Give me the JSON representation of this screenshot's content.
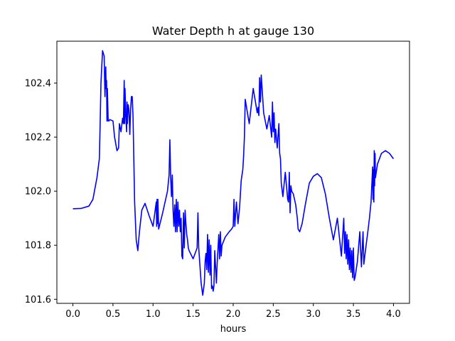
{
  "chart_data": {
    "type": "line",
    "title": "Water Depth h at gauge 130",
    "xlabel": "hours",
    "ylabel": "",
    "xlim": [
      -0.2,
      4.2
    ],
    "ylim": [
      101.585,
      102.555
    ],
    "xticks": [
      0.0,
      0.5,
      1.0,
      1.5,
      2.0,
      2.5,
      3.0,
      3.5,
      4.0
    ],
    "xtick_labels": [
      "0.0",
      "0.5",
      "1.0",
      "1.5",
      "2.0",
      "2.5",
      "3.0",
      "3.5",
      "4.0"
    ],
    "yticks": [
      101.6,
      101.8,
      102.0,
      102.2,
      102.4
    ],
    "ytick_labels": [
      "101.6",
      "101.8",
      "102.0",
      "102.2",
      "102.4"
    ],
    "grid": false,
    "series": [
      {
        "color": "#0000ff",
        "x": [
          0.0,
          0.1,
          0.2,
          0.25,
          0.3,
          0.33,
          0.34,
          0.35,
          0.37,
          0.39,
          0.4,
          0.41,
          0.415,
          0.42,
          0.425,
          0.43,
          0.44,
          0.45,
          0.46,
          0.5,
          0.52,
          0.55,
          0.57,
          0.58,
          0.6,
          0.62,
          0.63,
          0.64,
          0.645,
          0.65,
          0.66,
          0.67,
          0.675,
          0.68,
          0.69,
          0.7,
          0.71,
          0.72,
          0.73,
          0.74,
          0.75,
          0.77,
          0.79,
          0.8,
          0.81,
          0.83,
          0.86,
          0.9,
          0.95,
          1.0,
          1.04,
          1.045,
          1.05,
          1.055,
          1.06,
          1.07,
          1.12,
          1.18,
          1.2,
          1.21,
          1.22,
          1.23,
          1.24,
          1.25,
          1.26,
          1.27,
          1.28,
          1.29,
          1.3,
          1.31,
          1.32,
          1.33,
          1.34,
          1.35,
          1.36,
          1.37,
          1.38,
          1.39,
          1.4,
          1.41,
          1.42,
          1.43,
          1.44,
          1.45,
          1.5,
          1.55,
          1.56,
          1.57,
          1.6,
          1.62,
          1.64,
          1.65,
          1.66,
          1.67,
          1.68,
          1.69,
          1.7,
          1.71,
          1.72,
          1.73,
          1.74,
          1.75,
          1.76,
          1.77,
          1.79,
          1.8,
          1.82,
          1.83,
          1.84,
          1.85,
          1.86,
          1.9,
          1.95,
          1.98,
          2.0,
          2.01,
          2.02,
          2.04,
          2.06,
          2.08,
          2.1,
          2.12,
          2.13,
          2.14,
          2.15,
          2.2,
          2.25,
          2.3,
          2.31,
          2.32,
          2.33,
          2.34,
          2.35,
          2.38,
          2.42,
          2.45,
          2.48,
          2.49,
          2.5,
          2.51,
          2.52,
          2.53,
          2.55,
          2.57,
          2.58,
          2.59,
          2.6,
          2.62,
          2.65,
          2.68,
          2.69,
          2.7,
          2.71,
          2.72,
          2.73,
          2.75,
          2.78,
          2.8,
          2.81,
          2.83,
          2.86,
          2.9,
          2.95,
          3.0,
          3.05,
          3.1,
          3.15,
          3.2,
          3.25,
          3.3,
          3.35,
          3.38,
          3.39,
          3.4,
          3.41,
          3.42,
          3.43,
          3.44,
          3.45,
          3.46,
          3.47,
          3.48,
          3.49,
          3.5,
          3.51,
          3.52,
          3.55,
          3.58,
          3.6,
          3.62,
          3.63,
          3.65,
          3.68,
          3.7,
          3.72,
          3.74,
          3.745,
          3.75,
          3.755,
          3.76,
          3.765,
          3.77,
          3.775,
          3.8,
          3.85,
          3.9,
          3.95,
          4.0
        ],
        "y": [
          101.935,
          101.936,
          101.945,
          101.97,
          102.05,
          102.12,
          102.25,
          102.4,
          102.52,
          102.5,
          102.35,
          102.46,
          102.38,
          102.41,
          102.26,
          102.38,
          102.26,
          102.26,
          102.265,
          102.26,
          102.2,
          102.15,
          102.16,
          102.25,
          102.22,
          102.27,
          102.25,
          102.41,
          102.25,
          102.38,
          102.28,
          102.22,
          102.33,
          102.25,
          102.32,
          102.3,
          102.21,
          102.3,
          102.35,
          102.35,
          102.28,
          101.96,
          101.82,
          101.8,
          101.78,
          101.85,
          101.93,
          101.955,
          101.91,
          101.87,
          101.96,
          101.87,
          101.97,
          101.88,
          101.97,
          101.86,
          101.92,
          102.0,
          102.06,
          102.19,
          102.05,
          101.98,
          102.06,
          101.93,
          101.87,
          101.95,
          101.85,
          101.97,
          101.85,
          101.96,
          101.87,
          101.93,
          101.85,
          101.9,
          101.76,
          101.75,
          101.92,
          101.79,
          101.93,
          101.88,
          101.84,
          101.82,
          101.79,
          101.78,
          101.75,
          101.79,
          101.92,
          101.79,
          101.66,
          101.615,
          101.66,
          101.74,
          101.77,
          101.71,
          101.84,
          101.7,
          101.82,
          101.69,
          101.8,
          101.64,
          101.65,
          101.63,
          101.65,
          101.78,
          101.66,
          101.73,
          101.84,
          101.75,
          101.85,
          101.76,
          101.8,
          101.83,
          101.85,
          101.86,
          101.87,
          101.97,
          101.87,
          101.96,
          101.88,
          101.94,
          102.04,
          102.08,
          102.13,
          102.2,
          102.34,
          102.25,
          102.38,
          102.29,
          102.31,
          102.28,
          102.42,
          102.33,
          102.43,
          102.29,
          102.23,
          102.28,
          102.2,
          102.33,
          102.22,
          102.29,
          102.18,
          102.23,
          102.16,
          102.25,
          102.14,
          102.12,
          102.03,
          101.98,
          102.07,
          101.97,
          101.96,
          102.07,
          101.92,
          102.02,
          102.0,
          101.99,
          101.95,
          101.9,
          101.86,
          101.85,
          101.88,
          101.95,
          102.03,
          102.055,
          102.065,
          102.05,
          101.99,
          101.9,
          101.82,
          101.9,
          101.76,
          101.9,
          101.77,
          101.85,
          101.75,
          101.84,
          101.73,
          101.82,
          101.71,
          101.79,
          101.7,
          101.78,
          101.68,
          101.79,
          101.67,
          101.68,
          101.74,
          101.85,
          101.72,
          101.85,
          101.73,
          101.78,
          101.85,
          101.9,
          101.96,
          102.09,
          101.97,
          102.08,
          101.96,
          102.15,
          102.02,
          102.14,
          102.05,
          102.1,
          102.14,
          102.15,
          102.14,
          102.12
        ]
      }
    ]
  }
}
